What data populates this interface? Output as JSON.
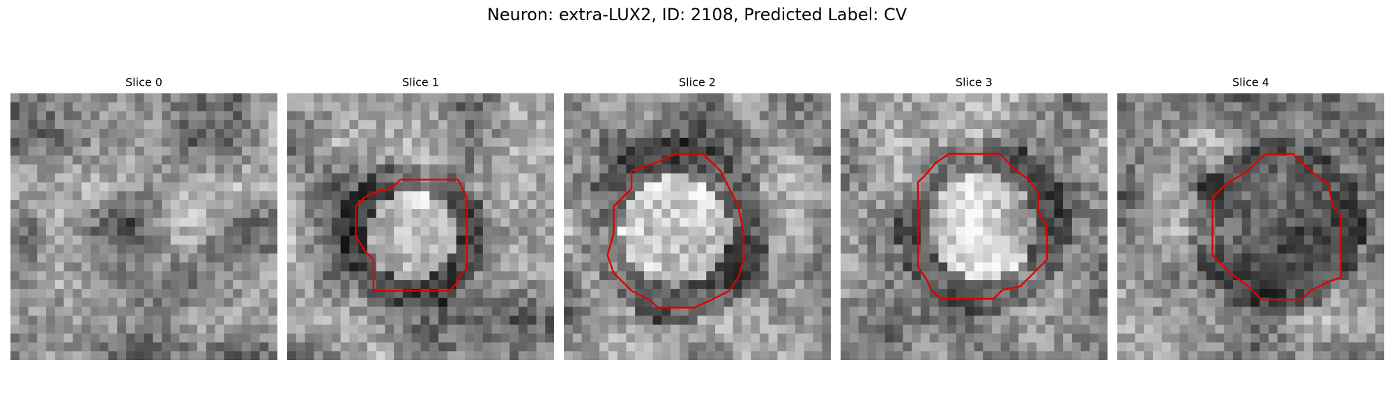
{
  "title": "Neuron: extra-LUX2, ID: 2108, Predicted Label: CV",
  "panels": [
    {
      "title": "Slice 0"
    },
    {
      "title": "Slice 1"
    },
    {
      "title": "Slice 2"
    },
    {
      "title": "Slice 3"
    },
    {
      "title": "Slice 4"
    }
  ]
}
